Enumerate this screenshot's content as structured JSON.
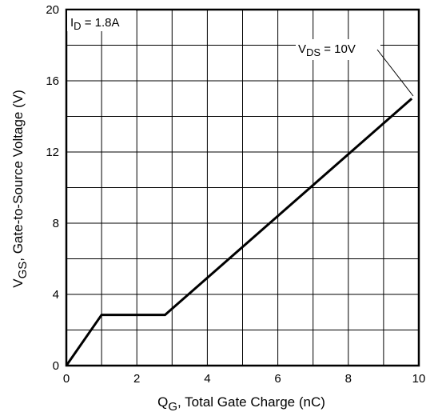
{
  "chart_data": {
    "type": "line",
    "title": "",
    "xlabel_main": "Q",
    "xlabel_sub": "G",
    "xlabel_rest": ", Total Gate Charge (nC)",
    "ylabel_main": "V",
    "ylabel_sub": "GS",
    "ylabel_rest": ", Gate-to-Source Voltage (V)",
    "xlim": [
      0,
      10
    ],
    "ylim": [
      0,
      20
    ],
    "xticks": [
      0,
      2,
      4,
      6,
      8,
      10
    ],
    "yticks": [
      0,
      4,
      8,
      12,
      16,
      20
    ],
    "grid": true,
    "grid_x_step": 1,
    "grid_y_step": 2,
    "annotations": {
      "id_main": "I",
      "id_sub": "D",
      "id_rest": " = 1.8A",
      "vds_main": "V",
      "vds_sub": "DS",
      "vds_rest": " = 10V"
    },
    "series": [
      {
        "x": [
          0,
          1.0,
          2.8,
          9.8
        ],
        "y": [
          0,
          2.85,
          2.85,
          15.0
        ]
      }
    ]
  }
}
